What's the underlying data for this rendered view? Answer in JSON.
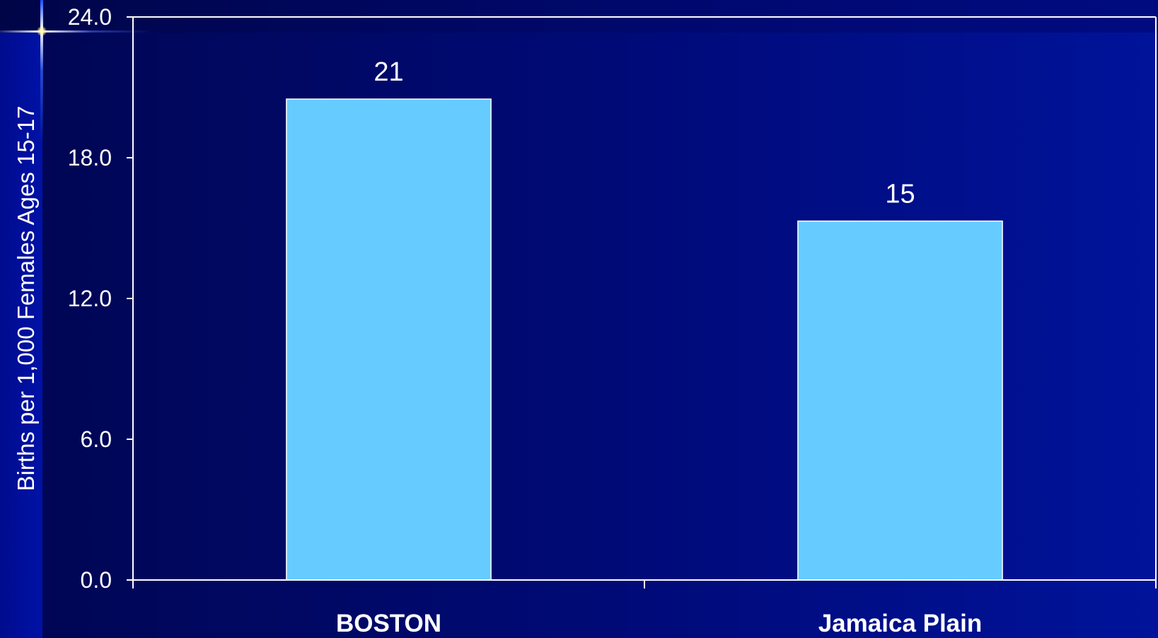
{
  "chart_data": {
    "type": "bar",
    "categories": [
      "BOSTON",
      "Jamaica Plain"
    ],
    "values": [
      20.5,
      15.3
    ],
    "data_labels": [
      "21",
      "15"
    ],
    "title": "",
    "xlabel": "",
    "ylabel": "Births per 1,000 Females Ages 15-17",
    "ylim": [
      0,
      24
    ],
    "yticks": [
      "0.0",
      "6.0",
      "12.0",
      "18.0",
      "24.0"
    ],
    "grid": false,
    "legend": "none",
    "bar_color": "#66ccff",
    "bar_border_color": "#ffffff",
    "axis_color": "#ffffff"
  }
}
